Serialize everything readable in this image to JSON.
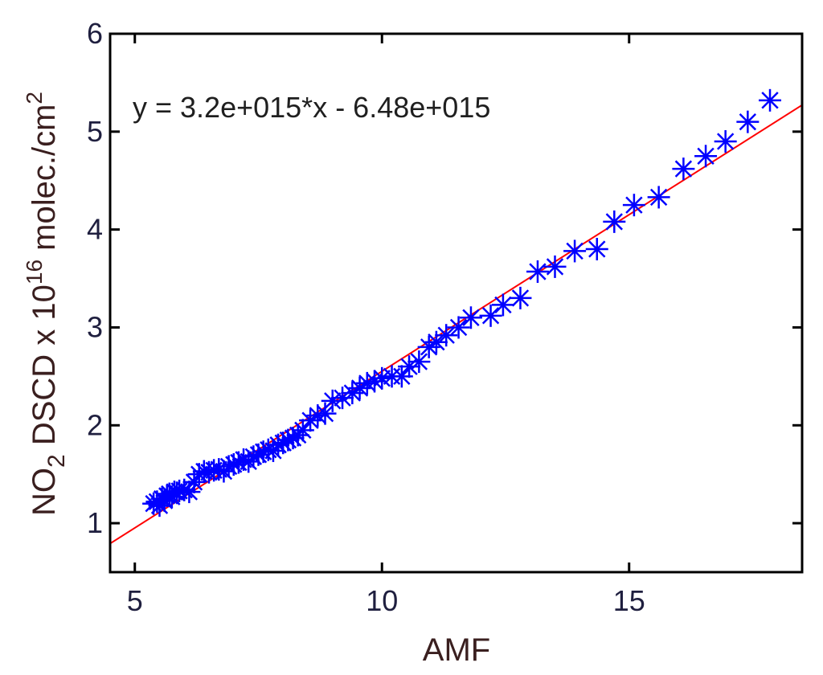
{
  "chart_data": {
    "type": "scatter",
    "xlabel": "AMF",
    "ylabel": {
      "prefix": "NO",
      "prefix_sub": "2",
      "mid": " DSCD x 10",
      "exp": "16",
      "unit": " molec./cm",
      "unit_exp": "2"
    },
    "xlim": [
      4.5,
      18.5
    ],
    "ylim": [
      0.5,
      6.0
    ],
    "xticks": [
      5,
      10,
      15
    ],
    "yticks": [
      1,
      2,
      3,
      4,
      5,
      6
    ],
    "xtick_labels": [
      "5",
      "10",
      "15"
    ],
    "ytick_labels": [
      "1",
      "2",
      "3",
      "4",
      "5",
      "6"
    ],
    "annotation": "y = 3.2e+015*x - 6.48e+015",
    "grid": false,
    "colors": {
      "marker": "#0000ff",
      "fit_line": "#ff0000",
      "axes": "#000000"
    },
    "series": [
      {
        "marker": "asterisk",
        "x": [
          5.38,
          5.45,
          5.5,
          5.55,
          5.6,
          5.65,
          5.7,
          5.75,
          5.8,
          5.85,
          5.9,
          6.0,
          6.1,
          6.2,
          6.3,
          6.4,
          6.5,
          6.6,
          6.7,
          6.8,
          6.9,
          7.0,
          7.1,
          7.2,
          7.3,
          7.4,
          7.5,
          7.6,
          7.7,
          7.8,
          7.9,
          8.0,
          8.1,
          8.2,
          8.3,
          8.4,
          8.55,
          8.7,
          8.85,
          9.0,
          9.2,
          9.4,
          9.55,
          9.7,
          9.85,
          10.0,
          10.2,
          10.4,
          10.55,
          10.75,
          10.95,
          11.1,
          11.3,
          11.55,
          11.8,
          12.2,
          12.45,
          12.8,
          13.15,
          13.5,
          13.9,
          14.35,
          14.7,
          15.1,
          15.6,
          16.1,
          16.55,
          16.95,
          17.4,
          17.85
        ],
        "y": [
          1.2,
          1.22,
          1.18,
          1.25,
          1.23,
          1.28,
          1.3,
          1.27,
          1.32,
          1.31,
          1.33,
          1.34,
          1.32,
          1.42,
          1.5,
          1.53,
          1.52,
          1.54,
          1.55,
          1.53,
          1.58,
          1.6,
          1.62,
          1.65,
          1.63,
          1.68,
          1.7,
          1.73,
          1.75,
          1.74,
          1.8,
          1.82,
          1.85,
          1.87,
          1.9,
          1.95,
          2.05,
          2.1,
          2.12,
          2.25,
          2.28,
          2.33,
          2.38,
          2.43,
          2.45,
          2.48,
          2.5,
          2.5,
          2.6,
          2.65,
          2.8,
          2.85,
          2.92,
          3.0,
          3.1,
          3.12,
          3.23,
          3.3,
          3.57,
          3.62,
          3.78,
          3.8,
          4.08,
          4.25,
          4.33,
          4.62,
          4.75,
          4.9,
          5.1,
          5.32
        ]
      }
    ],
    "fit_line": {
      "slope": 0.32,
      "intercept": -0.648,
      "x_range": [
        4.5,
        18.5
      ]
    }
  }
}
